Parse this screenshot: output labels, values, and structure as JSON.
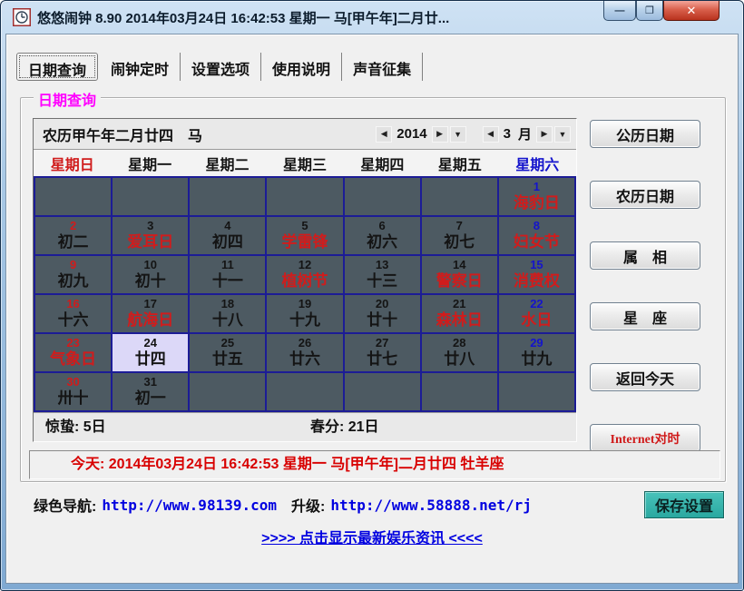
{
  "colors": {
    "red": "#d01c1c",
    "blue": "#1414cc",
    "magenta": "#ff00ff",
    "gridbg": "#4d5a62",
    "gridline": "#1c1c96",
    "selbg": "#dcd8f8",
    "todayred": "#d80000",
    "linkblue": "#0000e0",
    "teal": "#2fb3ab"
  },
  "icons": {
    "prev": "◀",
    "next": "▶",
    "dropdown": "▼",
    "minimize": "—",
    "maximize": "❐",
    "close": "✕"
  },
  "window": {
    "title": "悠悠闹钟 8.90 2014年03月24日 16:42:53 星期一 马[甲午年]二月廿..."
  },
  "tabs": [
    {
      "id": "date-query",
      "label": "日期查询",
      "active": true
    },
    {
      "id": "alarm-timer",
      "label": "闹钟定时",
      "active": false
    },
    {
      "id": "settings",
      "label": "设置选项",
      "active": false
    },
    {
      "id": "help",
      "label": "使用说明",
      "active": false
    },
    {
      "id": "sound-collect",
      "label": "声音征集",
      "active": false
    }
  ],
  "groupbox": {
    "label": "日期查询"
  },
  "calendar": {
    "header": {
      "lunar_text": "农历甲午年二月廿四　马",
      "year": "2014",
      "month": "3",
      "month_unit": "月"
    },
    "weekdays": [
      {
        "label": "星期日",
        "color": "red"
      },
      {
        "label": "星期一",
        "color": "black"
      },
      {
        "label": "星期二",
        "color": "black"
      },
      {
        "label": "星期三",
        "color": "black"
      },
      {
        "label": "星期四",
        "color": "black"
      },
      {
        "label": "星期五",
        "color": "black"
      },
      {
        "label": "星期六",
        "color": "blue"
      }
    ],
    "weeks": [
      [
        null,
        null,
        null,
        null,
        null,
        null,
        {
          "day": "1",
          "dc": "blue",
          "sub": "海豹日",
          "sc": "red"
        }
      ],
      [
        {
          "day": "2",
          "dc": "red",
          "sub": "初二",
          "sc": "black"
        },
        {
          "day": "3",
          "dc": "black",
          "sub": "爱耳日",
          "sc": "red"
        },
        {
          "day": "4",
          "dc": "black",
          "sub": "初四",
          "sc": "black"
        },
        {
          "day": "5",
          "dc": "black",
          "sub": "学雷锋",
          "sc": "red"
        },
        {
          "day": "6",
          "dc": "black",
          "sub": "初六",
          "sc": "black"
        },
        {
          "day": "7",
          "dc": "black",
          "sub": "初七",
          "sc": "black"
        },
        {
          "day": "8",
          "dc": "blue",
          "sub": "妇女节",
          "sc": "red"
        }
      ],
      [
        {
          "day": "9",
          "dc": "red",
          "sub": "初九",
          "sc": "black"
        },
        {
          "day": "10",
          "dc": "black",
          "sub": "初十",
          "sc": "black"
        },
        {
          "day": "11",
          "dc": "black",
          "sub": "十一",
          "sc": "black"
        },
        {
          "day": "12",
          "dc": "black",
          "sub": "植树节",
          "sc": "red"
        },
        {
          "day": "13",
          "dc": "black",
          "sub": "十三",
          "sc": "black"
        },
        {
          "day": "14",
          "dc": "black",
          "sub": "警察日",
          "sc": "red"
        },
        {
          "day": "15",
          "dc": "blue",
          "sub": "消费权",
          "sc": "red"
        }
      ],
      [
        {
          "day": "16",
          "dc": "red",
          "sub": "十六",
          "sc": "black"
        },
        {
          "day": "17",
          "dc": "black",
          "sub": "航海日",
          "sc": "red"
        },
        {
          "day": "18",
          "dc": "black",
          "sub": "十八",
          "sc": "black"
        },
        {
          "day": "19",
          "dc": "black",
          "sub": "十九",
          "sc": "black"
        },
        {
          "day": "20",
          "dc": "black",
          "sub": "廿十",
          "sc": "black"
        },
        {
          "day": "21",
          "dc": "black",
          "sub": "森林日",
          "sc": "red"
        },
        {
          "day": "22",
          "dc": "blue",
          "sub": "水日",
          "sc": "red"
        }
      ],
      [
        {
          "day": "23",
          "dc": "red",
          "sub": "气象日",
          "sc": "red"
        },
        {
          "day": "24",
          "dc": "black",
          "sub": "廿四",
          "sc": "black",
          "selected": true
        },
        {
          "day": "25",
          "dc": "black",
          "sub": "廿五",
          "sc": "black"
        },
        {
          "day": "26",
          "dc": "black",
          "sub": "廿六",
          "sc": "black"
        },
        {
          "day": "27",
          "dc": "black",
          "sub": "廿七",
          "sc": "black"
        },
        {
          "day": "28",
          "dc": "black",
          "sub": "廿八",
          "sc": "black"
        },
        {
          "day": "29",
          "dc": "blue",
          "sub": "廿九",
          "sc": "black"
        }
      ],
      [
        {
          "day": "30",
          "dc": "red",
          "sub": "卅十",
          "sc": "black"
        },
        {
          "day": "31",
          "dc": "black",
          "sub": "初一",
          "sc": "black"
        },
        null,
        null,
        null,
        null,
        null
      ]
    ],
    "footer": {
      "left": "惊蛰: 5日",
      "right": "春分: 21日"
    }
  },
  "side_buttons": [
    {
      "id": "gregorian-date",
      "label": "公历日期"
    },
    {
      "id": "lunar-date",
      "label": "农历日期"
    },
    {
      "id": "zodiac-animal",
      "label": "属　相"
    },
    {
      "id": "constellation",
      "label": "星　座"
    },
    {
      "id": "back-to-today",
      "label": "返回今天"
    },
    {
      "id": "internet-time-sync",
      "label": "Internet对时",
      "color": "red"
    }
  ],
  "today": {
    "text": "今天: 2014年03月24日 16:42:53 星期一 马[甲午年]二月廿四 牡羊座"
  },
  "links": {
    "nav_label": "绿色导航:",
    "nav_url": "http://www.98139.com",
    "upgrade_label": "升级:",
    "upgrade_url": "http://www.58888.net/rj",
    "save_label": "保存设置",
    "bottom_link": ">>>> 点击显示最新娱乐资讯 <<<<"
  }
}
